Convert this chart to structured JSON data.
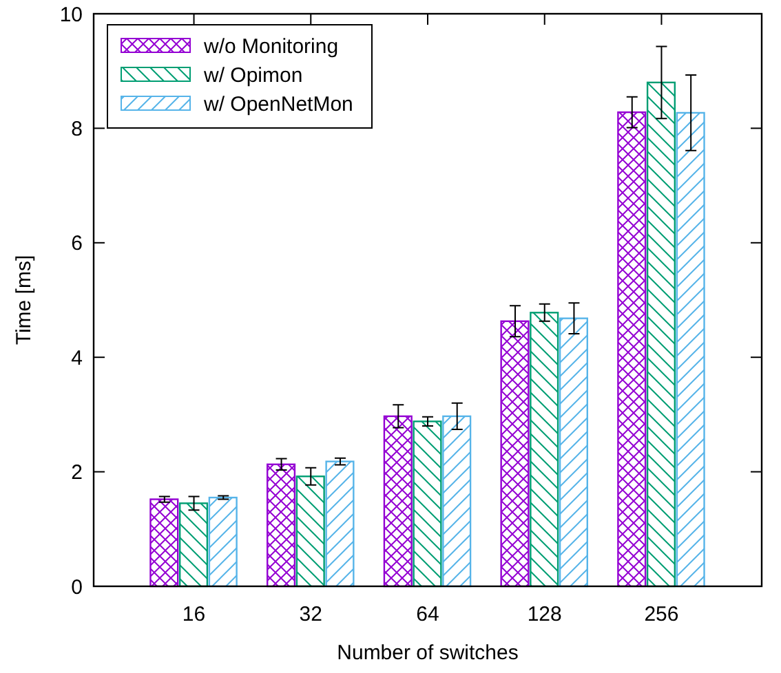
{
  "chart_data": {
    "type": "bar",
    "xlabel": "Number of switches",
    "ylabel": "Time [ms]",
    "categories": [
      "16",
      "32",
      "64",
      "128",
      "256"
    ],
    "ylim": [
      0,
      10
    ],
    "yticks": [
      0,
      2,
      4,
      6,
      8,
      10
    ],
    "legend": "top left",
    "grid": false,
    "series": [
      {
        "name": "w/o Monitoring",
        "color": "#9400d3",
        "values": [
          1.52,
          2.13,
          2.97,
          4.63,
          8.28
        ],
        "errors": [
          0.05,
          0.1,
          0.2,
          0.27,
          0.27
        ]
      },
      {
        "name": "w/ Opimon",
        "color": "#009e73",
        "values": [
          1.45,
          1.92,
          2.88,
          4.78,
          8.8
        ],
        "errors": [
          0.12,
          0.15,
          0.08,
          0.15,
          0.63
        ]
      },
      {
        "name": "w/ OpenNetMon",
        "color": "#56b4e9",
        "values": [
          1.55,
          2.18,
          2.97,
          4.68,
          8.27
        ],
        "errors": [
          0.03,
          0.06,
          0.23,
          0.27,
          0.66
        ]
      }
    ]
  }
}
